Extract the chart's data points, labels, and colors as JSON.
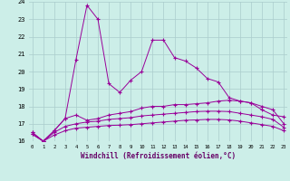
{
  "x": [
    0,
    1,
    2,
    3,
    4,
    5,
    6,
    7,
    8,
    9,
    10,
    11,
    12,
    13,
    14,
    15,
    16,
    17,
    18,
    19,
    20,
    21,
    22,
    23
  ],
  "line1": [
    16.5,
    16.0,
    16.6,
    17.3,
    20.7,
    23.8,
    23.0,
    19.3,
    18.8,
    19.5,
    20.0,
    21.8,
    21.8,
    20.8,
    20.6,
    20.2,
    19.6,
    19.4,
    18.5,
    18.3,
    18.2,
    17.8,
    17.5,
    17.4
  ],
  "line2": [
    16.5,
    16.0,
    16.6,
    17.3,
    17.5,
    17.2,
    17.3,
    17.5,
    17.6,
    17.7,
    17.9,
    18.0,
    18.0,
    18.1,
    18.1,
    18.15,
    18.2,
    18.3,
    18.35,
    18.3,
    18.2,
    18.0,
    17.8,
    17.0
  ],
  "line3": [
    16.4,
    16.0,
    16.5,
    16.85,
    17.0,
    17.1,
    17.15,
    17.25,
    17.3,
    17.35,
    17.45,
    17.5,
    17.55,
    17.6,
    17.65,
    17.7,
    17.72,
    17.72,
    17.7,
    17.6,
    17.5,
    17.4,
    17.25,
    16.8
  ],
  "line4": [
    16.4,
    16.0,
    16.35,
    16.6,
    16.75,
    16.8,
    16.85,
    16.9,
    16.92,
    16.95,
    17.0,
    17.05,
    17.1,
    17.15,
    17.2,
    17.22,
    17.25,
    17.25,
    17.22,
    17.15,
    17.05,
    16.95,
    16.85,
    16.6
  ],
  "bg_color": "#cceee8",
  "grid_color": "#aacccc",
  "line_color": "#990099",
  "xlabel": "Windchill (Refroidissement éolien,°C)",
  "ylim": [
    16,
    24
  ],
  "xlim": [
    0,
    23
  ],
  "yticks": [
    16,
    17,
    18,
    19,
    20,
    21,
    22,
    23,
    24
  ],
  "xticks": [
    0,
    1,
    2,
    3,
    4,
    5,
    6,
    7,
    8,
    9,
    10,
    11,
    12,
    13,
    14,
    15,
    16,
    17,
    18,
    19,
    20,
    21,
    22,
    23
  ]
}
